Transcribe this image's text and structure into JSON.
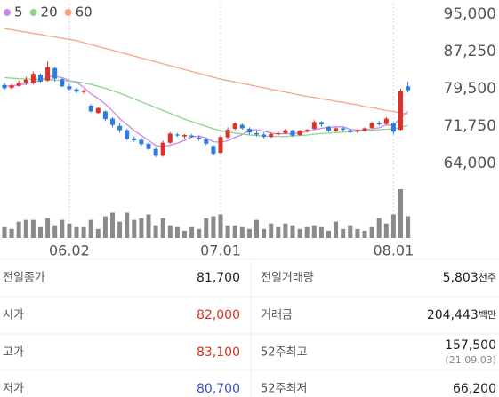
{
  "chart_data": {
    "type": "candlestick",
    "categories": [
      null,
      null,
      null,
      null,
      null,
      null,
      null,
      null,
      null,
      "06.02",
      null,
      null,
      null,
      null,
      null,
      null,
      null,
      null,
      null,
      null,
      null,
      null,
      null,
      null,
      null,
      null,
      null,
      null,
      null,
      null,
      "07.01",
      null,
      null,
      null,
      null,
      null,
      null,
      null,
      null,
      null,
      null,
      null,
      null,
      null,
      null,
      null,
      null,
      null,
      null,
      null,
      null,
      null,
      null,
      null,
      "08.01",
      null,
      null
    ],
    "open": [
      80300,
      79700,
      80100,
      80800,
      80600,
      82400,
      81200,
      83800,
      81500,
      80000,
      79400,
      78900,
      76000,
      74500,
      74800,
      73300,
      71800,
      70900,
      69200,
      68900,
      68100,
      67000,
      65600,
      68300,
      70000,
      69600,
      69800,
      69400,
      69000,
      67600,
      66200,
      69400,
      71200,
      72000,
      71200,
      70300,
      70000,
      69500,
      70100,
      70300,
      70900,
      69900,
      70700,
      71200,
      72600,
      71600,
      70800,
      71300,
      70900,
      70600,
      70800,
      71400,
      72400,
      72200,
      72300,
      71000,
      80000
    ],
    "high": [
      80800,
      80500,
      81200,
      82000,
      83100,
      82700,
      85200,
      84000,
      81800,
      80500,
      79700,
      79400,
      76300,
      75700,
      75000,
      73600,
      72300,
      71200,
      69600,
      69300,
      68400,
      67300,
      68700,
      70500,
      70300,
      70100,
      70100,
      69800,
      69200,
      67900,
      69800,
      71500,
      72600,
      72300,
      71500,
      70700,
      70400,
      70400,
      70700,
      71200,
      71000,
      71000,
      71200,
      73000,
      72800,
      71800,
      71500,
      71600,
      71200,
      71100,
      71500,
      72700,
      72900,
      73600,
      72500,
      79500,
      81000
    ],
    "low": [
      79300,
      79400,
      79900,
      80300,
      80400,
      80700,
      81000,
      81000,
      79800,
      79100,
      78600,
      78500,
      74600,
      74300,
      72800,
      71500,
      70400,
      68800,
      68500,
      67600,
      66800,
      65300,
      65400,
      68100,
      69500,
      69200,
      69300,
      68700,
      67800,
      65600,
      66000,
      69100,
      70900,
      71000,
      70000,
      69600,
      69200,
      69300,
      69800,
      70100,
      69500,
      69700,
      70400,
      71000,
      71600,
      70500,
      70600,
      70700,
      70300,
      70300,
      70600,
      71200,
      71800,
      72000,
      70000,
      70800,
      78700
    ],
    "close": [
      79600,
      80200,
      80800,
      81400,
      82600,
      81000,
      84000,
      81600,
      80000,
      79400,
      78900,
      79000,
      74800,
      75500,
      73200,
      72000,
      70900,
      69100,
      68800,
      68000,
      67000,
      65600,
      68300,
      70200,
      69800,
      69900,
      69500,
      69000,
      68100,
      66000,
      69500,
      71000,
      72300,
      71300,
      70400,
      70000,
      69500,
      70100,
      70300,
      70900,
      69800,
      70800,
      71000,
      72600,
      72100,
      70800,
      71300,
      71000,
      70500,
      70900,
      71300,
      72400,
      72100,
      73300,
      70600,
      79000,
      79200
    ],
    "volume": [
      1200,
      1000,
      1800,
      2000,
      2000,
      1200,
      2200,
      1400,
      2000,
      1600,
      1200,
      1200,
      2000,
      1000,
      2400,
      2800,
      1800,
      2800,
      2000,
      2200,
      2600,
      1400,
      2200,
      1400,
      1200,
      800,
      1200,
      1000,
      2200,
      2400,
      2600,
      1400,
      1400,
      1200,
      1000,
      2000,
      1000,
      1600,
      1200,
      1600,
      1400,
      1000,
      1200,
      1400,
      1200,
      800,
      1800,
      1000,
      1400,
      1000,
      800,
      1200,
      2200,
      1600,
      2600,
      5400,
      2400
    ],
    "up_color": "#e0302a",
    "down_color": "#2f7be0",
    "volume_color": "#8a8a8a",
    "series": [
      {
        "name": "5",
        "color": "#c98be6",
        "values": [
          80000,
          80100,
          80300,
          80500,
          80900,
          81200,
          82000,
          82100,
          81800,
          81200,
          80800,
          79800,
          78400,
          77500,
          76300,
          74900,
          73300,
          72100,
          70800,
          69800,
          68800,
          67700,
          67500,
          67800,
          68200,
          68800,
          69500,
          69700,
          69300,
          68500,
          68400,
          68700,
          69400,
          70000,
          70900,
          71000,
          70700,
          70300,
          70100,
          70200,
          70100,
          70400,
          70600,
          71000,
          71300,
          71500,
          71600,
          71600,
          71100,
          70900,
          71000,
          71200,
          71400,
          72000,
          71900,
          73500,
          74800
        ]
      },
      {
        "name": "20",
        "color": "#8fd48f",
        "values": [
          81800,
          81700,
          81600,
          81500,
          81500,
          81400,
          81400,
          81300,
          81200,
          81100,
          81000,
          80700,
          80400,
          80000,
          79600,
          79100,
          78600,
          78000,
          77400,
          76800,
          76200,
          75600,
          75000,
          74400,
          73800,
          73200,
          72700,
          72200,
          71700,
          71200,
          70800,
          70500,
          70300,
          70100,
          69900,
          69800,
          69700,
          69600,
          69600,
          69600,
          69700,
          69800,
          69900,
          70100,
          70200,
          70300,
          70400,
          70500,
          70600,
          70700,
          70800,
          70900,
          71000,
          71100,
          71200,
          71500,
          71900
        ]
      },
      {
        "name": "60",
        "color": "#f4a582",
        "values": [
          92000,
          91800,
          91500,
          91300,
          91000,
          90800,
          90500,
          90300,
          90000,
          89800,
          89500,
          89100,
          88700,
          88300,
          87900,
          87500,
          87100,
          86700,
          86300,
          85900,
          85500,
          85100,
          84700,
          84300,
          83900,
          83500,
          83100,
          82700,
          82300,
          81900,
          81500,
          81200,
          80900,
          80600,
          80300,
          80000,
          79700,
          79400,
          79100,
          78800,
          78500,
          78200,
          77900,
          77700,
          77400,
          77200,
          76900,
          76700,
          76400,
          76200,
          75800,
          75600,
          75300,
          75000,
          74800,
          74500,
          74300
        ]
      }
    ],
    "ylim": [
      64000,
      95000
    ],
    "yticks": [
      {
        "value": 95000,
        "label": "95,000"
      },
      {
        "value": 87250,
        "label": "87,250"
      },
      {
        "value": 79500,
        "label": "79,500"
      },
      {
        "value": 71750,
        "label": "71,750"
      },
      {
        "value": 64000,
        "label": "64,000"
      }
    ],
    "grid": true
  },
  "table": {
    "rows": [
      {
        "left_label": "전일종가",
        "left_value": "81,700",
        "left_color": "#222222",
        "right_label": "전일거래량",
        "right_value": "5,803",
        "right_unit": "천주"
      },
      {
        "left_label": "시가",
        "left_value": "82,000",
        "left_color": "#d8301f",
        "right_label": "거래금",
        "right_value": "204,443",
        "right_unit": "백만"
      },
      {
        "left_label": "고가",
        "left_value": "83,100",
        "left_color": "#d8301f",
        "right_label": "52주최고",
        "right_value": "157,500",
        "right_note": "(21.09.03)"
      },
      {
        "left_label": "저가",
        "left_value": "80,700",
        "left_color": "#3a4fd8",
        "right_label": "52주최저",
        "right_value": "66,200"
      }
    ]
  }
}
